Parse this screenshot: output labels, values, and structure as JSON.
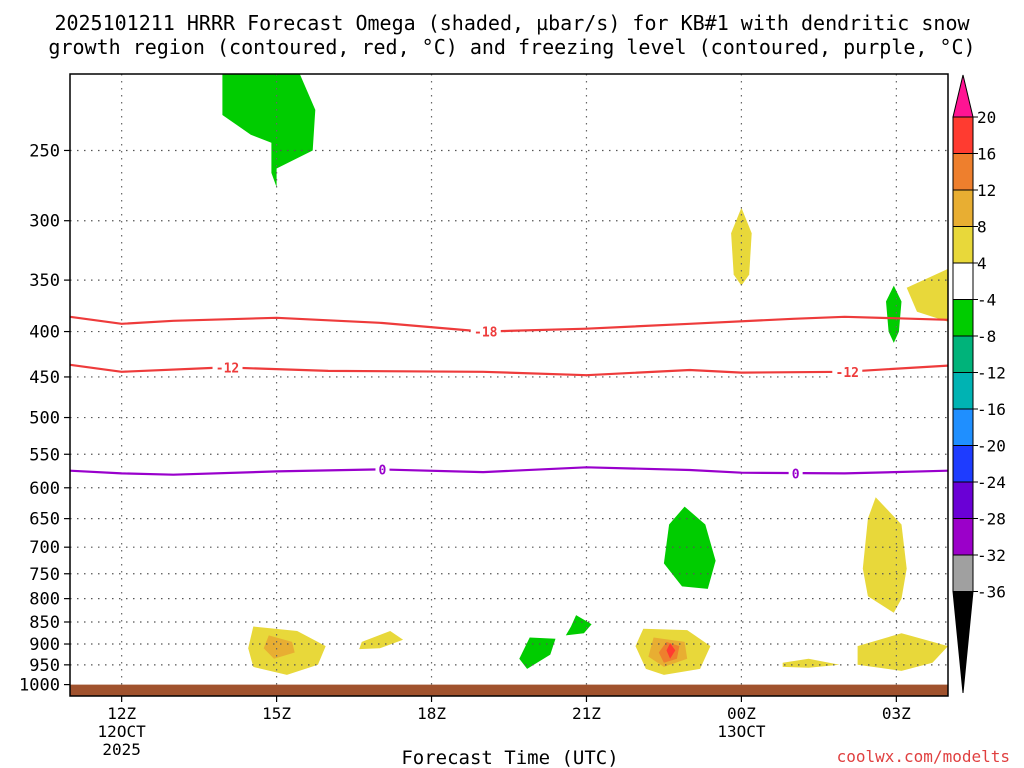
{
  "chart_data": {
    "type": "heatmap",
    "title_line1": "2025101211 HRRR Forecast Omega (shaded, µbar/s) for KB#1 with dendritic snow",
    "title_line2": "growth region (contoured, red, °C) and freezing level (contoured, purple, °C)",
    "xlabel": "Forecast Time (UTC)",
    "ylabel": "",
    "credit": "coolwx.com/modelts",
    "y_scale": "log",
    "y_inverted": true,
    "ylim": [
      1030,
      205
    ],
    "y_ticks": [
      250,
      300,
      350,
      400,
      450,
      500,
      550,
      600,
      650,
      700,
      750,
      800,
      850,
      900,
      950,
      1000
    ],
    "x_range_hours": [
      -1,
      16
    ],
    "x_ticks": [
      {
        "hour": 0,
        "label": "12Z",
        "sub1": "12OCT",
        "sub2": "2025"
      },
      {
        "hour": 3,
        "label": "15Z",
        "sub1": "",
        "sub2": ""
      },
      {
        "hour": 6,
        "label": "18Z",
        "sub1": "",
        "sub2": ""
      },
      {
        "hour": 9,
        "label": "21Z",
        "sub1": "",
        "sub2": ""
      },
      {
        "hour": 12,
        "label": "00Z",
        "sub1": "13OCT",
        "sub2": ""
      },
      {
        "hour": 15,
        "label": "03Z",
        "sub1": "",
        "sub2": ""
      }
    ],
    "grid": true,
    "colorbar": {
      "levels": [
        "20",
        "16",
        "12",
        "8",
        "4",
        "-4",
        "-8",
        "-12",
        "-16",
        "-20",
        "-24",
        "-28",
        "-32",
        "-36"
      ],
      "colors": [
        "#ff1493",
        "#ff3b30",
        "#ee7f2d",
        "#e8ae32",
        "#e8d83a",
        "#ffffff",
        "#00cc00",
        "#00b37a",
        "#00b3b3",
        "#1f8fff",
        "#1e3cff",
        "#6a00d6",
        "#9b00c9",
        "#a0a0a0",
        "#000000"
      ]
    },
    "contours": [
      {
        "label": "-18",
        "color": "#ee3b3b",
        "points": [
          [
            -1,
            385
          ],
          [
            0,
            392
          ],
          [
            1,
            389
          ],
          [
            3,
            386
          ],
          [
            5,
            391
          ],
          [
            7,
            400
          ],
          [
            9,
            397
          ],
          [
            11,
            392
          ],
          [
            13,
            387
          ],
          [
            14,
            385
          ],
          [
            16,
            388
          ]
        ],
        "label_at": [
          [
            7.05,
            400
          ]
        ]
      },
      {
        "label": "-12",
        "color": "#ee3b3b",
        "points": [
          [
            -1,
            436
          ],
          [
            0,
            444
          ],
          [
            2,
            439
          ],
          [
            4,
            443
          ],
          [
            7,
            444
          ],
          [
            9,
            448
          ],
          [
            11,
            442
          ],
          [
            12,
            445
          ],
          [
            14,
            444
          ],
          [
            16,
            437
          ]
        ],
        "label_at": [
          [
            2.05,
            439
          ],
          [
            14.05,
            444
          ]
        ]
      },
      {
        "label": "0",
        "color": "#9900cc",
        "points": [
          [
            -1,
            574
          ],
          [
            0,
            578
          ],
          [
            1,
            580
          ],
          [
            3,
            575
          ],
          [
            5,
            572
          ],
          [
            7,
            576
          ],
          [
            9,
            569
          ],
          [
            11,
            573
          ],
          [
            12,
            577
          ],
          [
            14,
            578
          ],
          [
            16,
            574
          ]
        ],
        "label_at": [
          [
            5.05,
            572
          ],
          [
            13.05,
            578
          ]
        ]
      }
    ],
    "omega_regions": [
      {
        "value": -6,
        "points": [
          [
            1.95,
            205
          ],
          [
            3.45,
            205
          ],
          [
            3.75,
            225
          ],
          [
            3.7,
            250
          ],
          [
            3.0,
            262
          ],
          [
            3.0,
            275
          ],
          [
            2.9,
            265
          ],
          [
            2.9,
            245
          ],
          [
            2.5,
            240
          ],
          [
            1.95,
            228
          ]
        ]
      },
      {
        "value": 6,
        "points": [
          [
            12.0,
            290
          ],
          [
            12.2,
            310
          ],
          [
            12.15,
            345
          ],
          [
            12.0,
            355
          ],
          [
            11.85,
            345
          ],
          [
            11.8,
            310
          ]
        ]
      },
      {
        "value": -6,
        "points": [
          [
            14.95,
            355
          ],
          [
            15.1,
            370
          ],
          [
            15.05,
            400
          ],
          [
            14.95,
            412
          ],
          [
            14.85,
            400
          ],
          [
            14.8,
            370
          ]
        ]
      },
      {
        "value": 6,
        "points": [
          [
            16,
            340
          ],
          [
            15.2,
            357
          ],
          [
            15.4,
            380
          ],
          [
            16,
            390
          ]
        ]
      },
      {
        "value": -6,
        "points": [
          [
            10.9,
            630
          ],
          [
            11.3,
            660
          ],
          [
            11.5,
            725
          ],
          [
            11.35,
            780
          ],
          [
            10.85,
            775
          ],
          [
            10.5,
            730
          ],
          [
            10.6,
            660
          ]
        ]
      },
      {
        "value": 6,
        "points": [
          [
            14.6,
            615
          ],
          [
            15.1,
            660
          ],
          [
            15.2,
            740
          ],
          [
            15.1,
            800
          ],
          [
            14.95,
            830
          ],
          [
            14.45,
            795
          ],
          [
            14.35,
            740
          ],
          [
            14.45,
            650
          ]
        ]
      },
      {
        "value": 6,
        "points": [
          [
            2.55,
            860
          ],
          [
            3.4,
            870
          ],
          [
            3.95,
            905
          ],
          [
            3.8,
            950
          ],
          [
            3.2,
            975
          ],
          [
            2.55,
            955
          ],
          [
            2.45,
            910
          ]
        ]
      },
      {
        "value": 10,
        "points": [
          [
            2.85,
            880
          ],
          [
            3.3,
            895
          ],
          [
            3.35,
            920
          ],
          [
            2.95,
            935
          ],
          [
            2.75,
            910
          ]
        ]
      },
      {
        "value": 6,
        "points": [
          [
            4.65,
            895
          ],
          [
            5.2,
            870
          ],
          [
            5.45,
            890
          ],
          [
            5.0,
            910
          ],
          [
            4.6,
            912
          ]
        ]
      },
      {
        "value": -6,
        "points": [
          [
            8.8,
            835
          ],
          [
            9.1,
            855
          ],
          [
            8.95,
            875
          ],
          [
            8.6,
            880
          ],
          [
            8.7,
            860
          ]
        ]
      },
      {
        "value": -6,
        "points": [
          [
            7.9,
            885
          ],
          [
            8.4,
            888
          ],
          [
            8.3,
            925
          ],
          [
            7.85,
            960
          ],
          [
            7.7,
            935
          ]
        ]
      },
      {
        "value": 6,
        "points": [
          [
            10.1,
            865
          ],
          [
            10.95,
            868
          ],
          [
            11.4,
            905
          ],
          [
            11.2,
            960
          ],
          [
            10.5,
            975
          ],
          [
            10.15,
            960
          ],
          [
            9.95,
            905
          ]
        ]
      },
      {
        "value": 10,
        "points": [
          [
            10.3,
            885
          ],
          [
            10.9,
            895
          ],
          [
            10.95,
            935
          ],
          [
            10.5,
            955
          ],
          [
            10.2,
            930
          ]
        ]
      },
      {
        "value": 14,
        "points": [
          [
            10.55,
            895
          ],
          [
            10.8,
            905
          ],
          [
            10.75,
            935
          ],
          [
            10.5,
            945
          ],
          [
            10.4,
            920
          ]
        ]
      },
      {
        "value": 18,
        "points": [
          [
            10.62,
            898
          ],
          [
            10.72,
            915
          ],
          [
            10.62,
            935
          ],
          [
            10.55,
            915
          ]
        ]
      },
      {
        "value": 6,
        "points": [
          [
            14.25,
            905
          ],
          [
            15.1,
            875
          ],
          [
            16,
            905
          ],
          [
            15.7,
            945
          ],
          [
            15.1,
            965
          ],
          [
            14.25,
            950
          ]
        ]
      },
      {
        "value": 6,
        "points": [
          [
            12.8,
            945
          ],
          [
            13.3,
            935
          ],
          [
            13.9,
            950
          ],
          [
            13.3,
            957
          ],
          [
            12.8,
            955
          ]
        ]
      }
    ],
    "ground": {
      "from_pressure": 1000,
      "to_pressure": 1030,
      "color": "#a0522d"
    }
  }
}
